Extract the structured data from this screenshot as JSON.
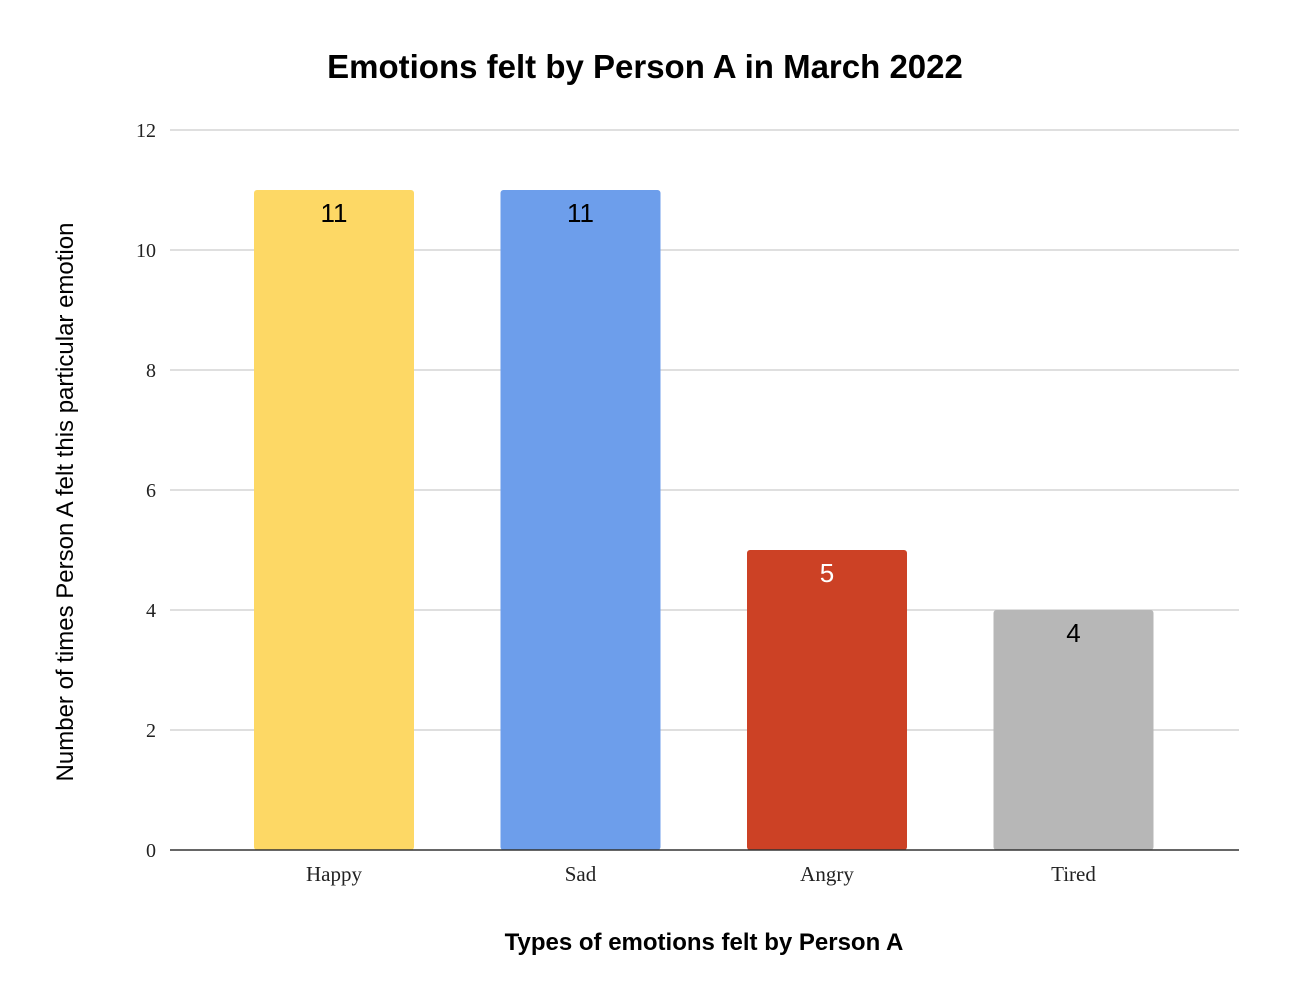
{
  "chart_data": {
    "type": "bar",
    "title": "Emotions felt by Person A in March 2022",
    "xlabel": "Types of emotions felt by Person A",
    "ylabel": "Number of times Person A felt this particular emotion",
    "categories": [
      "Happy",
      "Sad",
      "Angry",
      "Tired"
    ],
    "values": [
      11,
      11,
      5,
      4
    ],
    "bar_colors": [
      "#fdd865",
      "#6d9eeb",
      "#cc4125",
      "#b7b7b7"
    ],
    "data_label_colors": [
      "#000000",
      "#000000",
      "#ffffff",
      "#000000"
    ],
    "ylim": [
      0,
      12
    ],
    "yticks": [
      0,
      2,
      4,
      6,
      8,
      10,
      12
    ],
    "grid": true,
    "legend": "none"
  }
}
